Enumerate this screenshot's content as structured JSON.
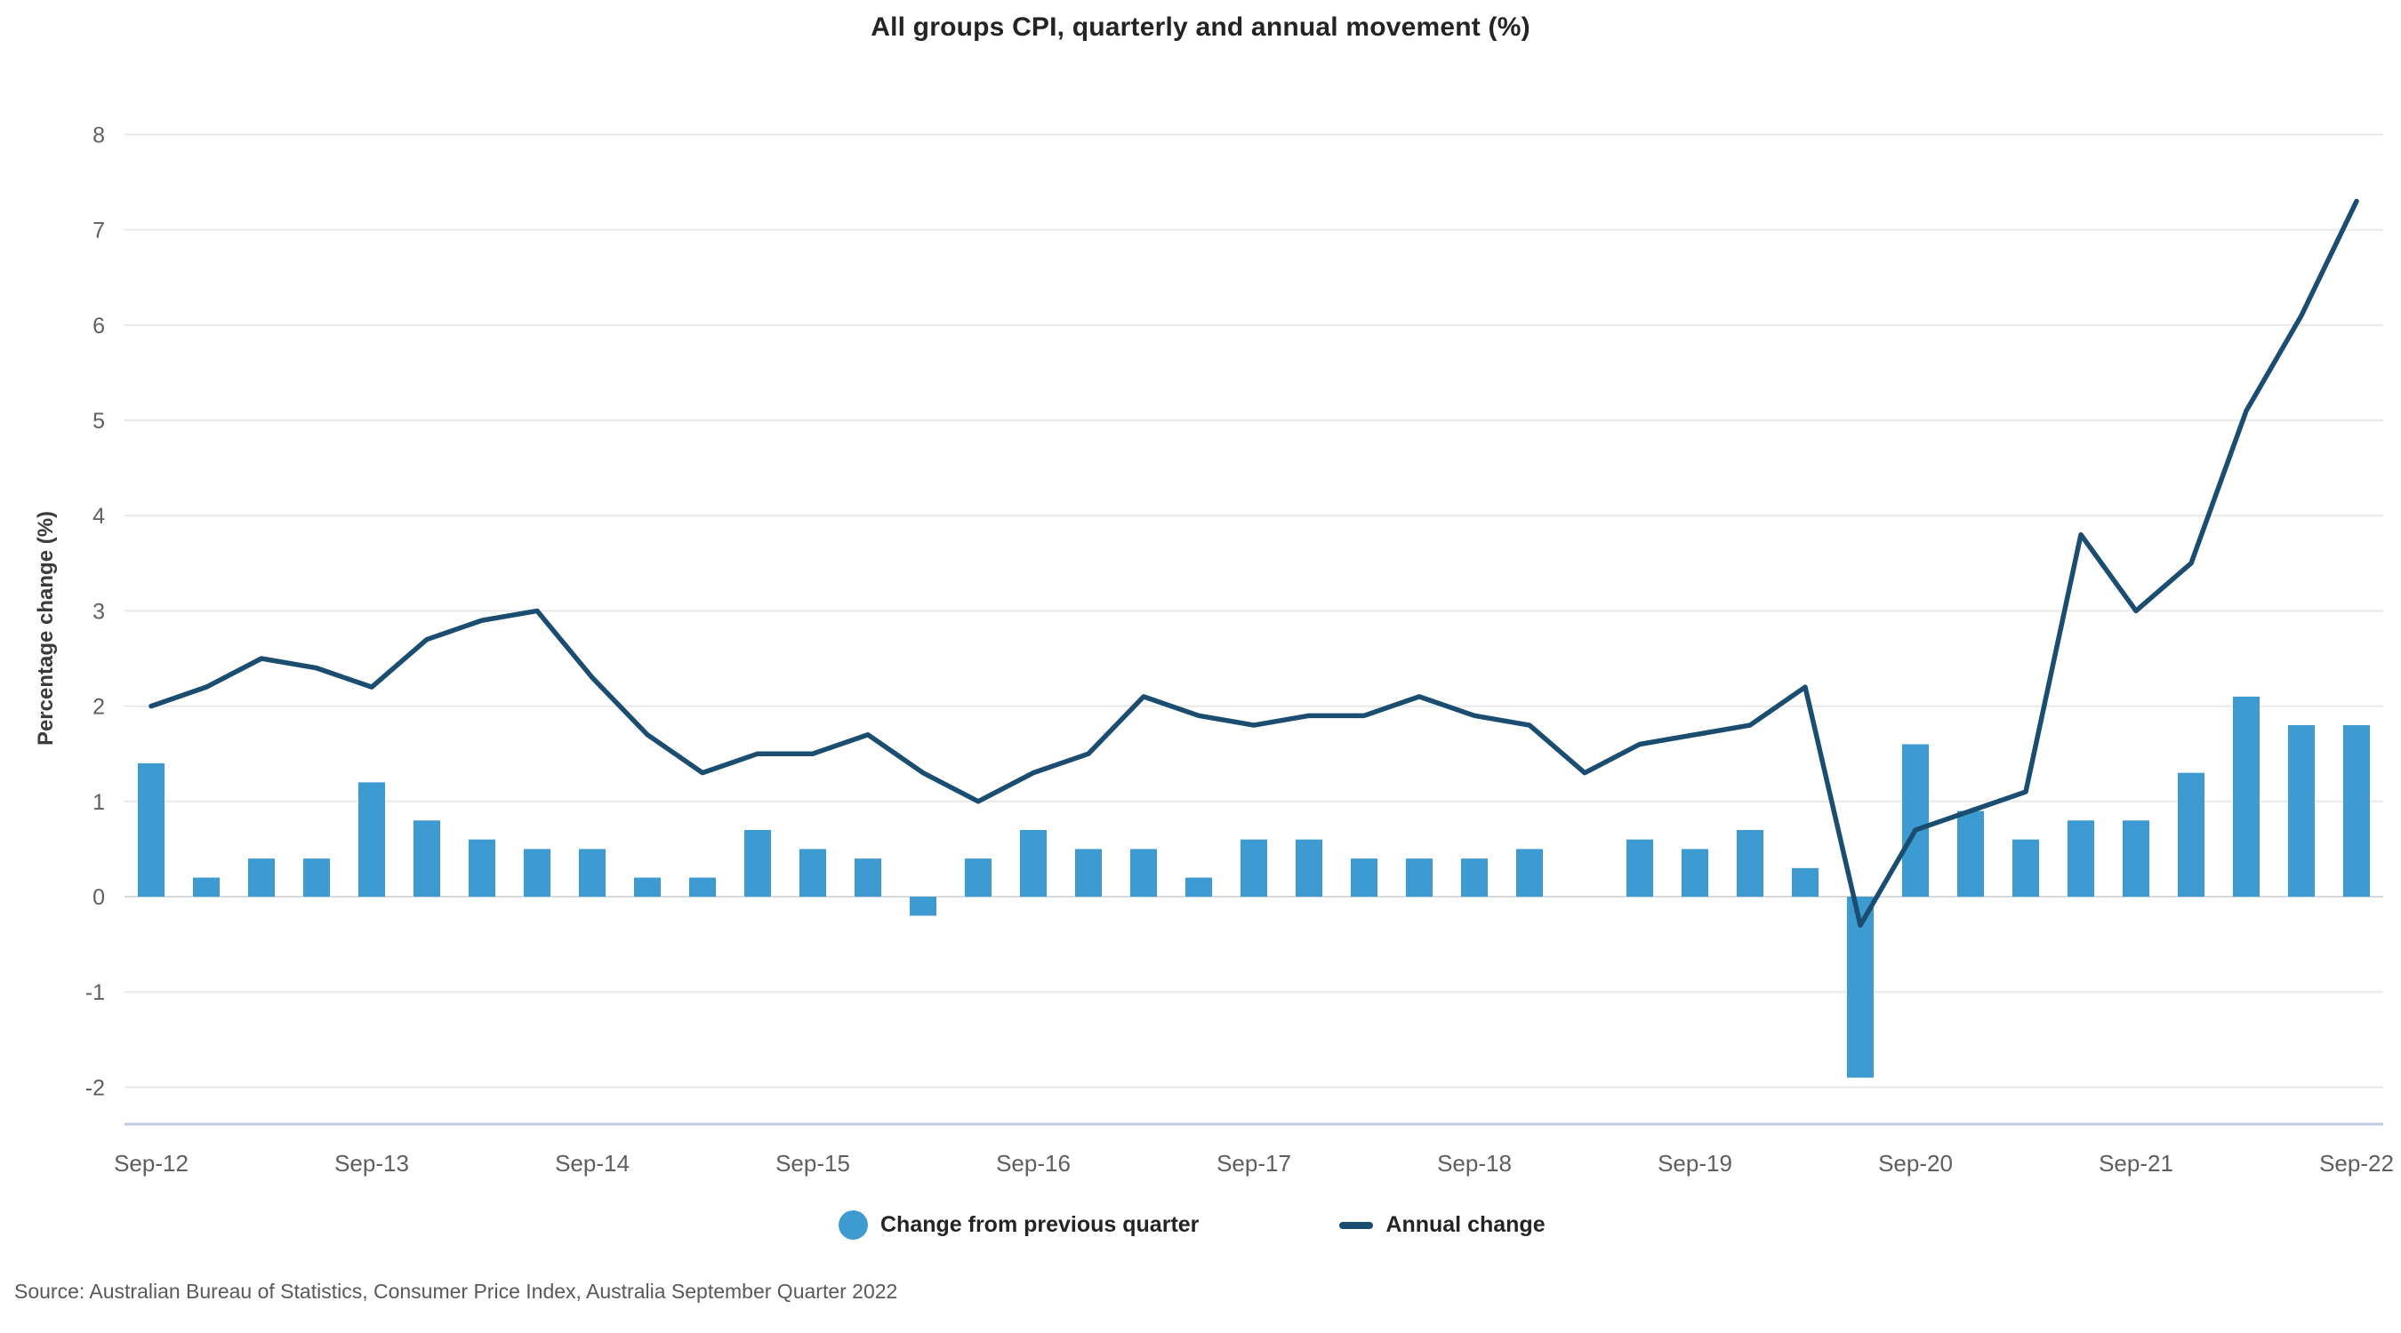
{
  "chart": {
    "title": "All groups CPI, quarterly and annual movement (%)",
    "ylabel": "Percentage change (%)",
    "source": "Source: Australian Bureau of Statistics, Consumer Price Index, Australia September Quarter 2022"
  },
  "legend": {
    "bar_label": "Change from previous quarter",
    "line_label": "Annual change"
  },
  "colors": {
    "bar": "#3D9BD1",
    "line": "#1B4D70",
    "gridline": "#E8E8E8",
    "zero_line": "#D9D9D9",
    "axis_line": "#BEC9E2",
    "tick_text": "#605E5C"
  },
  "chart_data": {
    "type": "bar",
    "title": "All groups CPI, quarterly and annual movement (%)",
    "xlabel": "",
    "ylabel": "Percentage change (%)",
    "ylim": [
      -2,
      8
    ],
    "yticks": [
      8,
      7,
      6,
      5,
      4,
      3,
      2,
      1,
      0,
      -1,
      -2
    ],
    "grid": true,
    "legend_position": "bottom",
    "x_tick_every": 4,
    "categories": [
      "Sep-12",
      "Dec-12",
      "Mar-13",
      "Jun-13",
      "Sep-13",
      "Dec-13",
      "Mar-14",
      "Jun-14",
      "Sep-14",
      "Dec-14",
      "Mar-15",
      "Jun-15",
      "Sep-15",
      "Dec-15",
      "Mar-16",
      "Jun-16",
      "Sep-16",
      "Dec-16",
      "Mar-17",
      "Jun-17",
      "Sep-17",
      "Dec-17",
      "Mar-18",
      "Jun-18",
      "Sep-18",
      "Dec-18",
      "Mar-19",
      "Jun-19",
      "Sep-19",
      "Dec-19",
      "Mar-20",
      "Jun-20",
      "Sep-20",
      "Dec-20",
      "Mar-21",
      "Jun-21",
      "Sep-21",
      "Dec-21",
      "Mar-22",
      "Jun-22",
      "Sep-22"
    ],
    "series": [
      {
        "name": "Change from previous quarter",
        "type": "bar",
        "values": [
          1.4,
          0.2,
          0.4,
          0.4,
          1.2,
          0.8,
          0.6,
          0.5,
          0.5,
          0.2,
          0.2,
          0.7,
          0.5,
          0.4,
          -0.2,
          0.4,
          0.7,
          0.5,
          0.5,
          0.2,
          0.6,
          0.6,
          0.4,
          0.4,
          0.4,
          0.5,
          0.0,
          0.6,
          0.5,
          0.7,
          0.3,
          -1.9,
          1.6,
          0.9,
          0.6,
          0.8,
          0.8,
          1.3,
          2.1,
          1.8,
          1.8
        ]
      },
      {
        "name": "Annual change",
        "type": "line",
        "values": [
          2.0,
          2.2,
          2.5,
          2.4,
          2.2,
          2.7,
          2.9,
          3.0,
          2.3,
          1.7,
          1.3,
          1.5,
          1.5,
          1.7,
          1.3,
          1.0,
          1.3,
          1.5,
          2.1,
          1.9,
          1.8,
          1.9,
          1.9,
          2.1,
          1.9,
          1.8,
          1.3,
          1.6,
          1.7,
          1.8,
          2.2,
          -0.3,
          0.7,
          0.9,
          1.1,
          3.8,
          3.0,
          3.5,
          5.1,
          6.1,
          7.3
        ]
      }
    ]
  }
}
